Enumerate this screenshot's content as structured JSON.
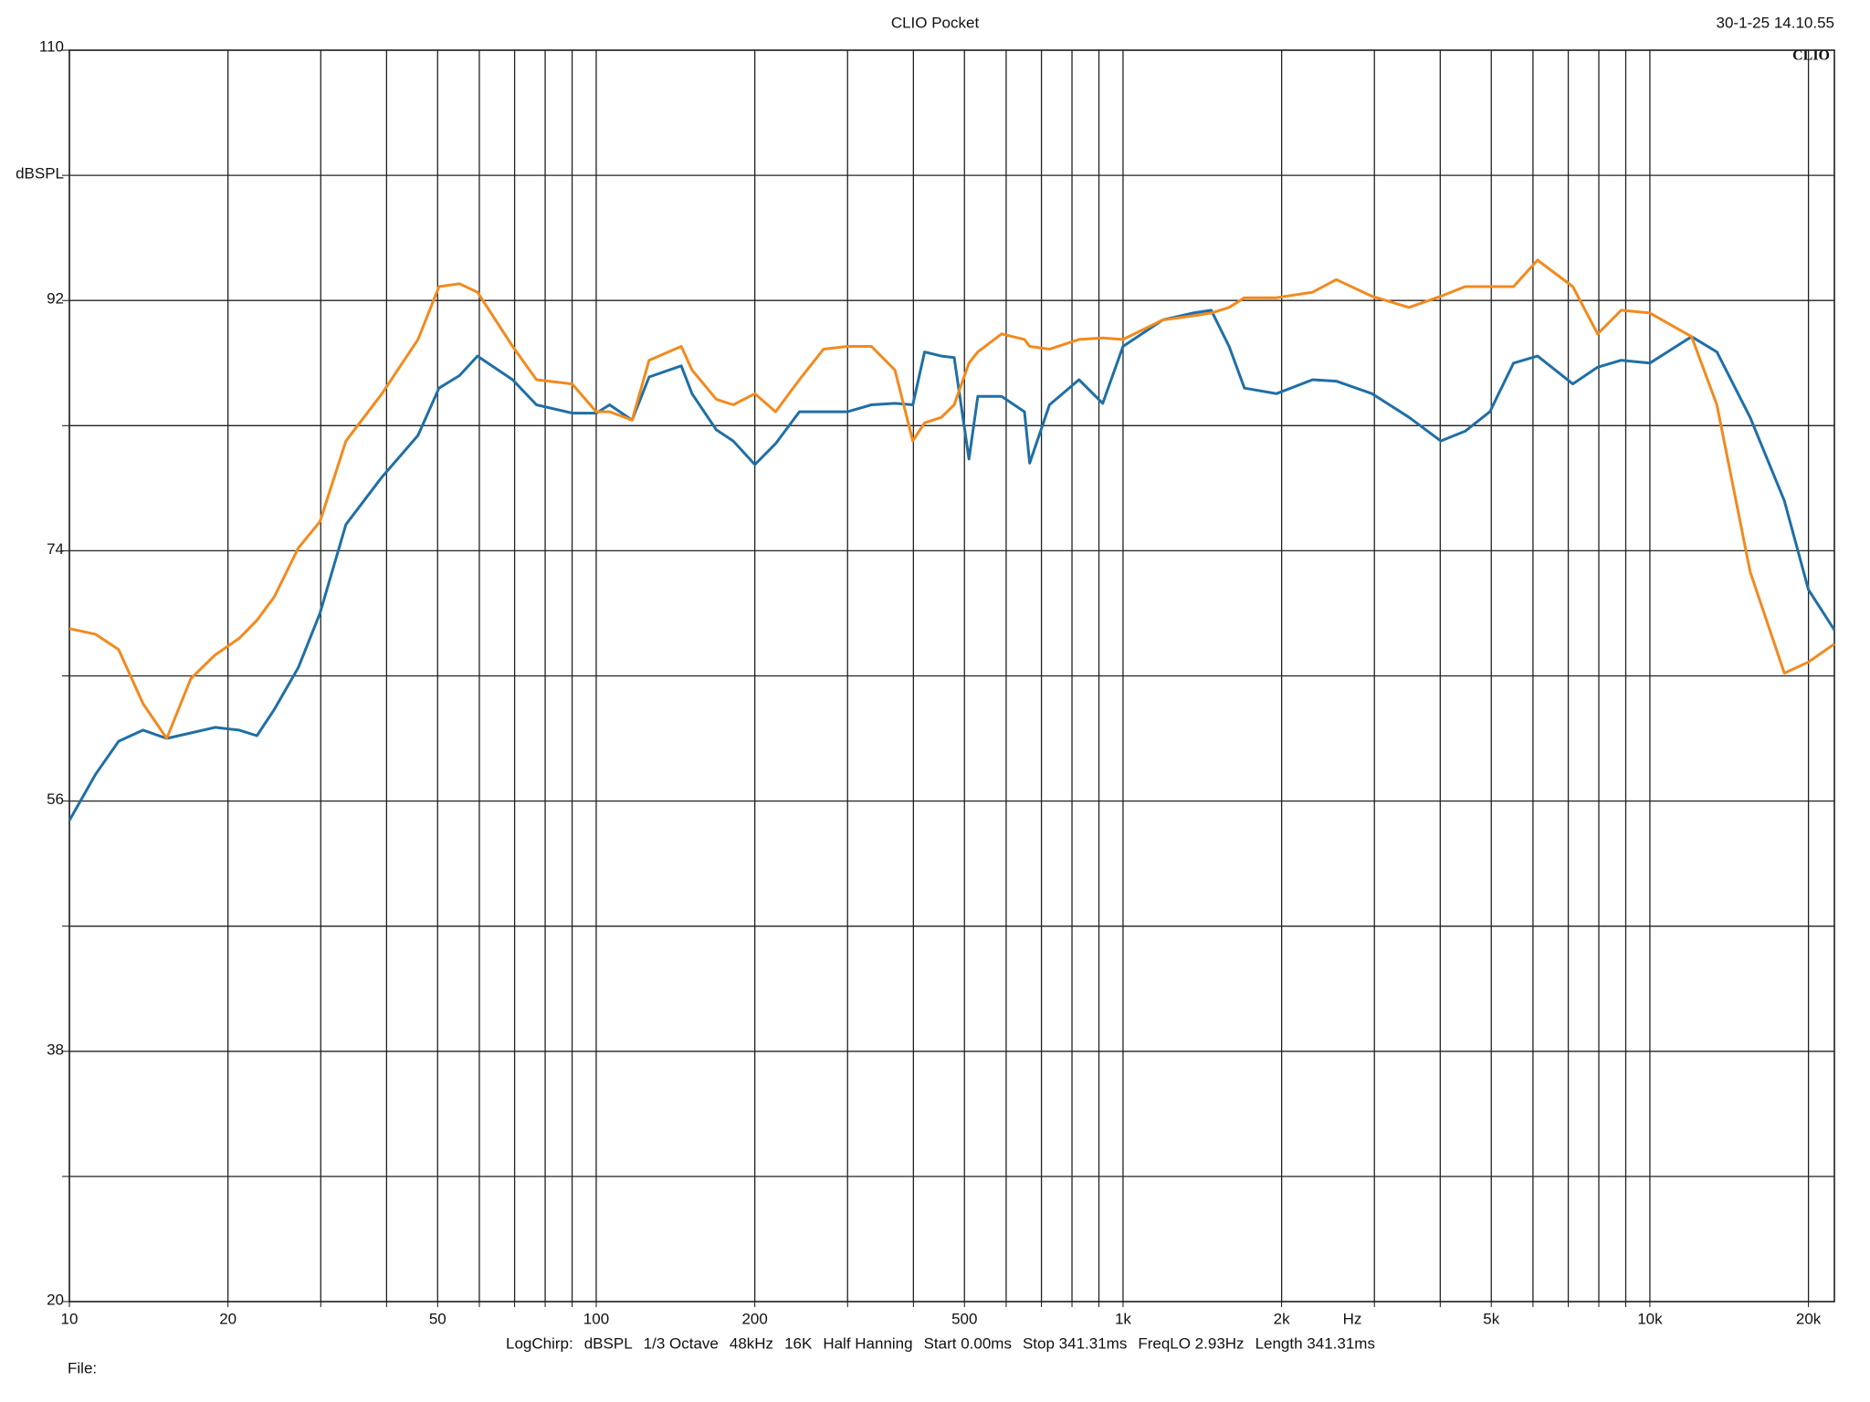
{
  "chart_data": {
    "type": "line",
    "title": "CLIO Pocket",
    "date": "30-1-25 14.10.55",
    "logo": "CLIO",
    "x_unit": "Hz",
    "footer": [
      "LogChirp:",
      "dBSPL",
      "1/3 Octave",
      "48kHz",
      "16K",
      "Half Hanning",
      "Start 0.00ms",
      "Stop 341.31ms",
      "FreqLO 2.93Hz",
      "Length 341.31ms"
    ],
    "file_label": "File:",
    "x_scale": "log",
    "xlim": [
      10,
      22400
    ],
    "ylim": [
      20,
      110
    ],
    "grid": true,
    "xticks": [
      10,
      20,
      {
        "value": 30,
        "label": null
      },
      {
        "value": 40,
        "label": null
      },
      50,
      {
        "value": 60,
        "label": null
      },
      {
        "value": 70,
        "label": null
      },
      {
        "value": 80,
        "label": null
      },
      {
        "value": 90,
        "label": null
      },
      100,
      200,
      {
        "value": 300,
        "label": null
      },
      {
        "value": 400,
        "label": null
      },
      500,
      {
        "value": 600,
        "label": null
      },
      {
        "value": 700,
        "label": null
      },
      {
        "value": 800,
        "label": null
      },
      {
        "value": 900,
        "label": null
      },
      {
        "value": 1000,
        "label": "1k"
      },
      {
        "value": 2000,
        "label": "2k"
      },
      {
        "value": 3000,
        "label": null
      },
      {
        "value": 4000,
        "label": null
      },
      {
        "value": 5000,
        "label": "5k"
      },
      {
        "value": 6000,
        "label": null
      },
      {
        "value": 7000,
        "label": null
      },
      {
        "value": 8000,
        "label": null
      },
      {
        "value": 9000,
        "label": null
      },
      {
        "value": 10000,
        "label": "10k"
      },
      {
        "value": 20000,
        "label": "20k"
      }
    ],
    "yticks": [
      20,
      {
        "value": 29,
        "label": null
      },
      38,
      {
        "value": 47,
        "label": null
      },
      56,
      {
        "value": 65,
        "label": null
      },
      74,
      {
        "value": 83,
        "label": null
      },
      92,
      {
        "value": 101,
        "label": "dBSPL"
      },
      110
    ],
    "x": [
      10,
      11.2,
      12.4,
      13.8,
      15.3,
      17,
      18.9,
      21,
      22.7,
      24.5,
      27.2,
      29.9,
      33.5,
      39.2,
      45.9,
      50.3,
      55,
      59.5,
      69.4,
      77,
      90,
      100,
      106,
      117,
      126,
      145,
      152,
      169,
      182,
      200,
      219,
      243,
      270,
      300,
      333,
      369,
      399,
      420,
      452,
      478,
      510,
      530,
      588,
      650,
      665,
      725,
      825,
      915,
      1000,
      1190,
      1360,
      1470,
      1590,
      1700,
      1955,
      2290,
      2540,
      2970,
      3490,
      4010,
      4460,
      4970,
      5510,
      6120,
      7140,
      7960,
      8820,
      10000,
      12000,
      13400,
      15500,
      18000,
      20000,
      22400
    ],
    "series": [
      {
        "color": "#1f6fa6",
        "values": [
          54.6,
          57.9,
          60.3,
          61.1,
          60.5,
          60.9,
          61.3,
          61.1,
          60.7,
          62.6,
          65.6,
          69.5,
          75.9,
          79.3,
          82.3,
          85.7,
          86.6,
          88,
          86.3,
          84.5,
          83.9,
          83.9,
          84.5,
          83.4,
          86.5,
          87.3,
          85.3,
          82.7,
          81.9,
          80.2,
          81.7,
          84,
          84,
          84,
          84.5,
          84.6,
          84.5,
          88.3,
          88,
          87.9,
          80.6,
          85.1,
          85.1,
          84,
          80.3,
          84.5,
          86.3,
          84.6,
          88.7,
          90.6,
          91.1,
          91.3,
          88.7,
          85.7,
          85.3,
          86.3,
          86.2,
          85.3,
          83.6,
          81.9,
          82.6,
          84,
          87.5,
          88,
          86,
          87.2,
          87.7,
          87.5,
          89.4,
          88.3,
          83.6,
          77.6,
          71.2,
          68.3
        ]
      },
      {
        "color": "#f28a1e",
        "values": [
          68.4,
          68,
          66.9,
          63,
          60.5,
          64.8,
          66.5,
          67.7,
          69,
          70.7,
          74.2,
          76.1,
          81.9,
          85.3,
          89.2,
          93,
          93.2,
          92.6,
          88.7,
          86.3,
          86,
          84,
          84,
          83.4,
          87.7,
          88.7,
          87,
          84.9,
          84.5,
          85.3,
          84,
          86.3,
          88.5,
          88.7,
          88.7,
          87,
          81.9,
          83.2,
          83.6,
          84.5,
          87.5,
          88.3,
          89.6,
          89.2,
          88.7,
          88.5,
          89.2,
          89.3,
          89.2,
          90.6,
          90.9,
          91.1,
          91.5,
          92.2,
          92.2,
          92.6,
          93.5,
          92.3,
          91.5,
          92.3,
          93,
          93,
          93,
          94.9,
          93,
          89.6,
          91.3,
          91.1,
          89.4,
          84.5,
          72.5,
          65.2,
          66,
          67.3
        ]
      }
    ]
  }
}
